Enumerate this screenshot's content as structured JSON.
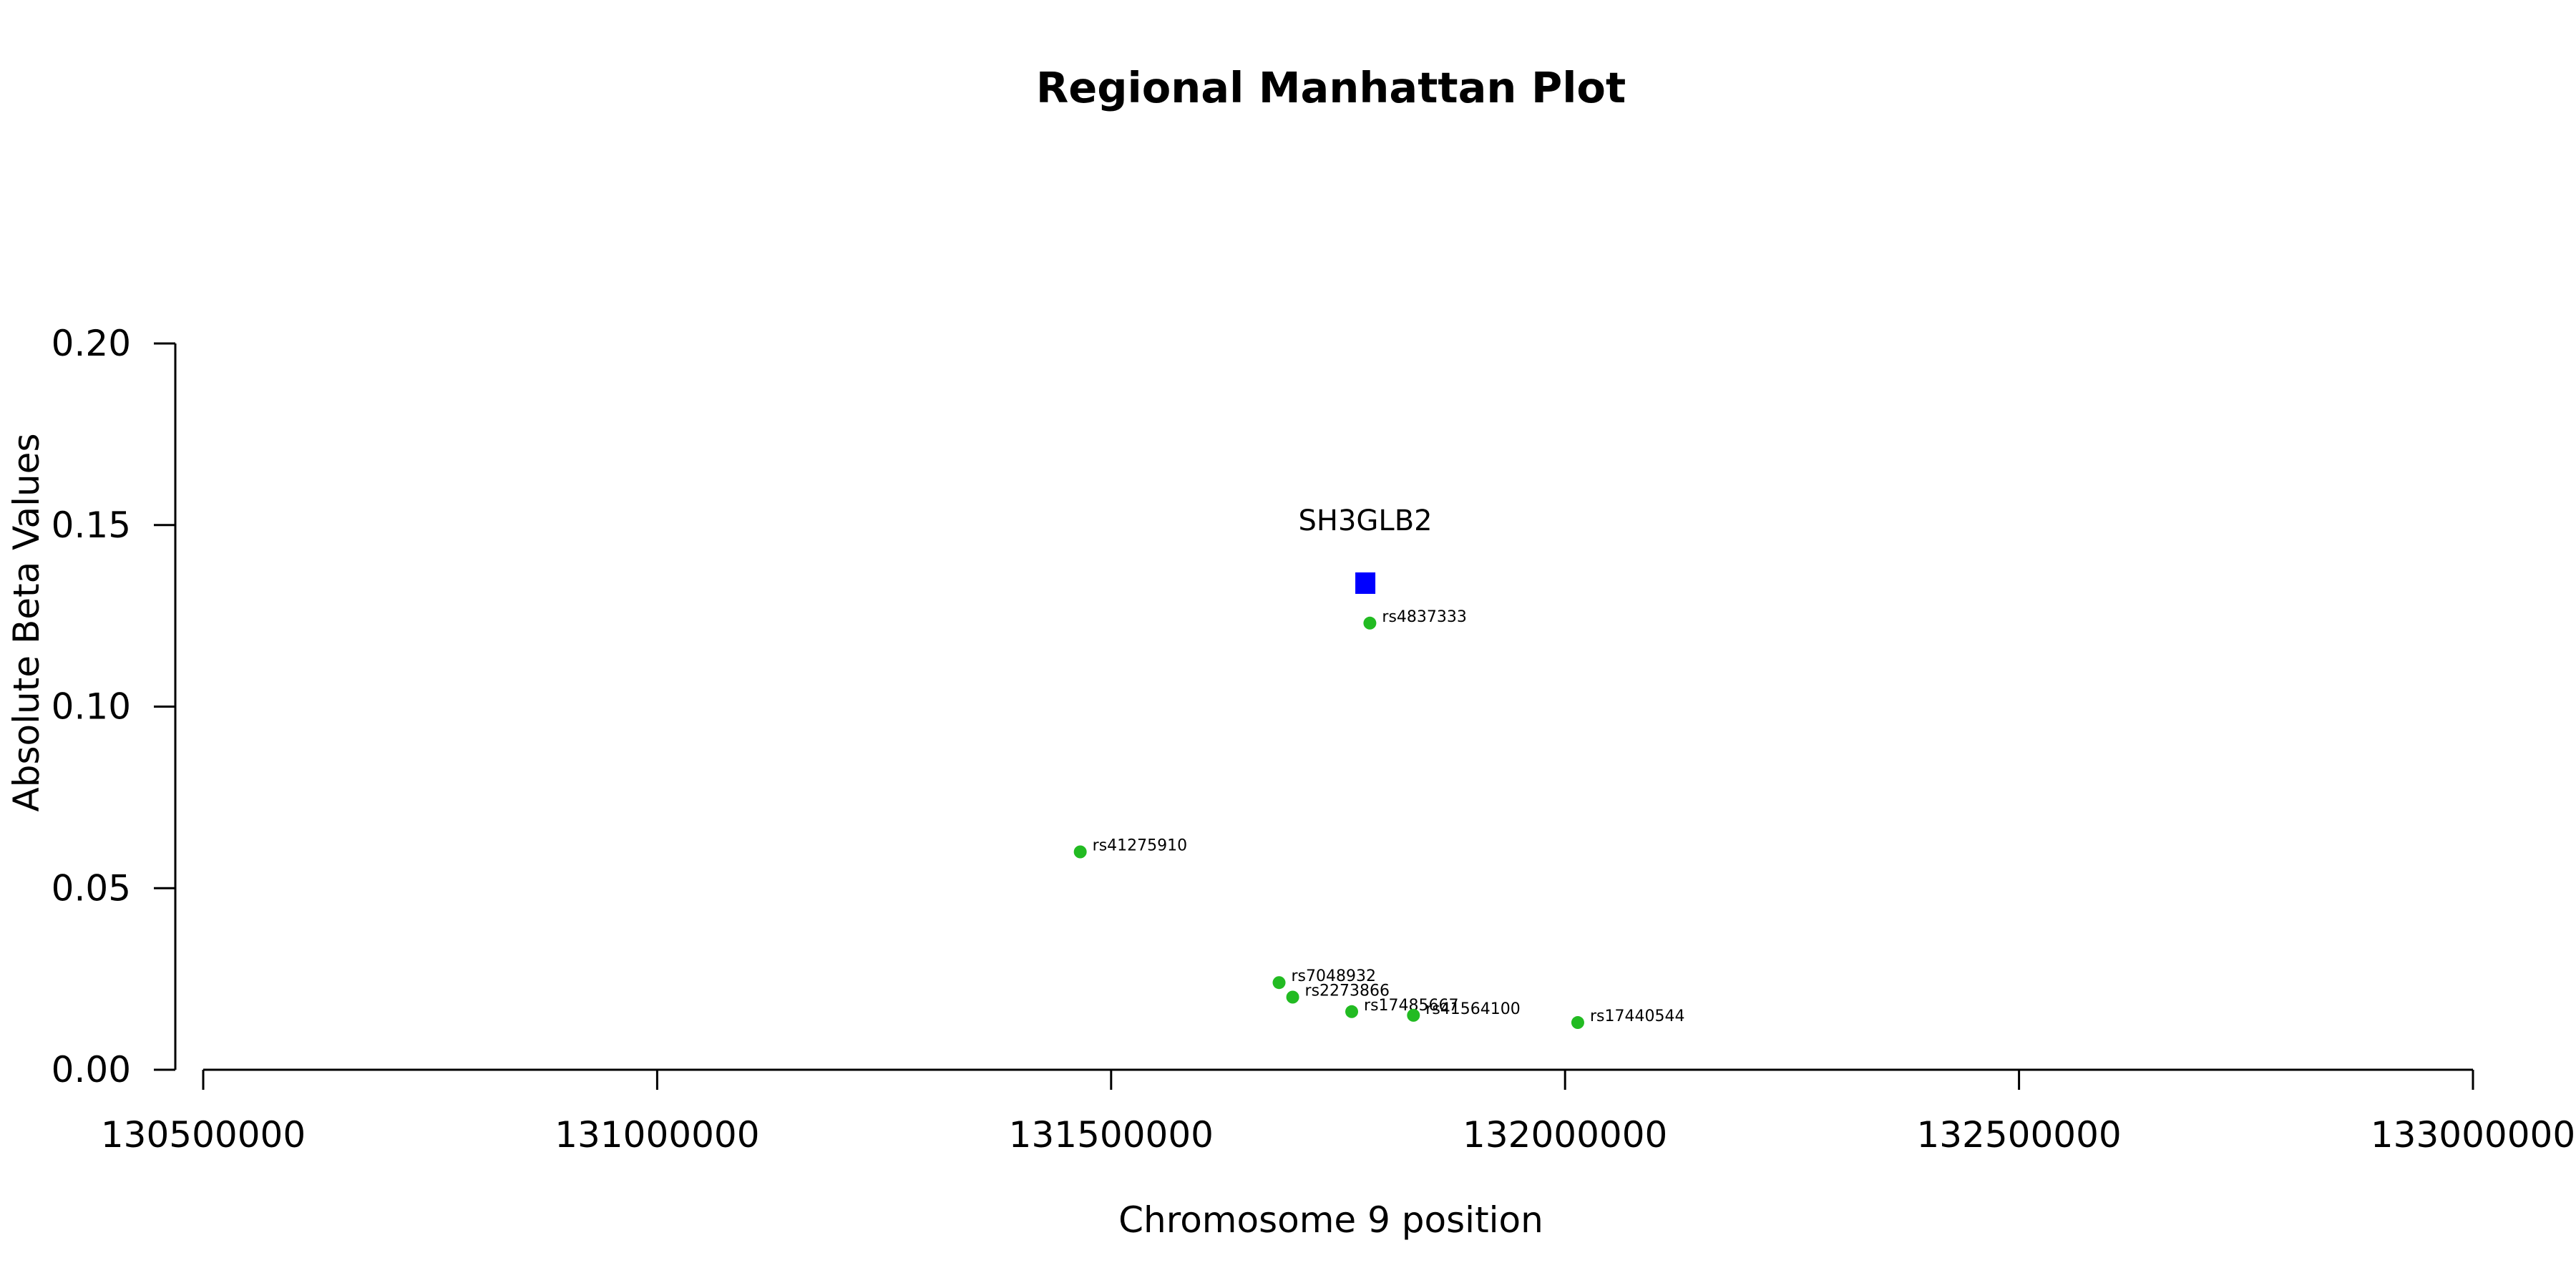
{
  "chart_data": {
    "type": "scatter",
    "title": "Regional Manhattan Plot",
    "xlabel": "Chromosome 9 position",
    "ylabel": "Absolute Beta Values",
    "xlim": [
      130500000,
      133000000
    ],
    "ylim": [
      0,
      0.2
    ],
    "x_ticks": [
      "130500000",
      "131000000",
      "131500000",
      "132000000",
      "132500000",
      "133000000"
    ],
    "y_ticks": [
      "0.00",
      "0.05",
      "0.10",
      "0.15",
      "0.20"
    ],
    "grid": false,
    "gene": {
      "label": "SH3GLB2",
      "x": 131780000,
      "y": 0.134,
      "color": "#0000ff",
      "marker": "square"
    },
    "snps": {
      "color": "#22bb22",
      "points": [
        {
          "label": "rs4837333",
          "x": 131785000,
          "y": 0.123
        },
        {
          "label": "rs41275910",
          "x": 131466000,
          "y": 0.06
        },
        {
          "label": "rs7048932",
          "x": 131685000,
          "y": 0.024
        },
        {
          "label": "rs2273866",
          "x": 131700000,
          "y": 0.02
        },
        {
          "label": "rs17485667",
          "x": 131765000,
          "y": 0.016
        },
        {
          "label": "rs41564100",
          "x": 131833000,
          "y": 0.015
        },
        {
          "label": "rs17440544",
          "x": 132014000,
          "y": 0.013
        }
      ]
    }
  }
}
